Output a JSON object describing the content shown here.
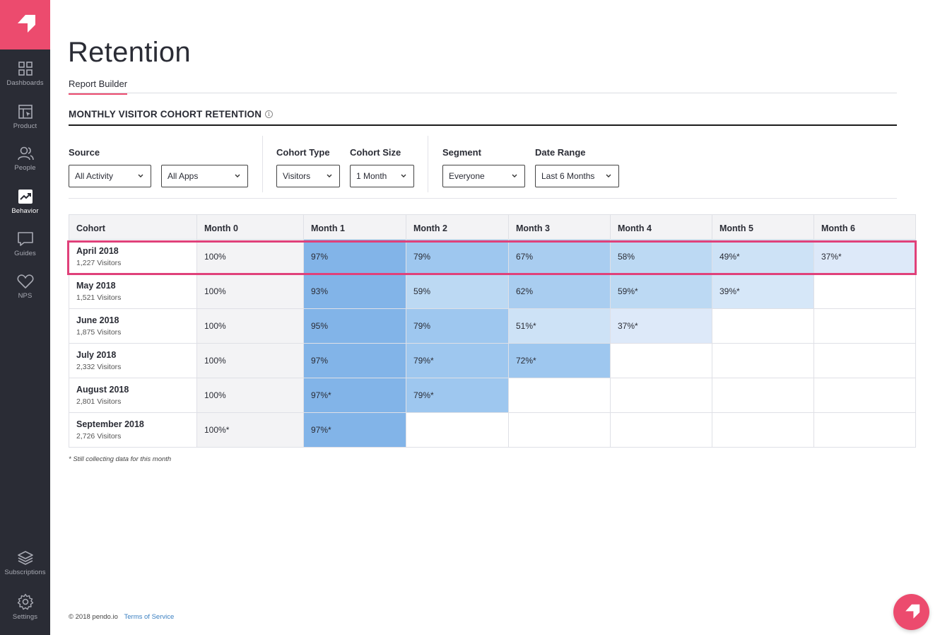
{
  "sidebar": {
    "items": [
      {
        "label": "Dashboards",
        "icon": "dashboards-icon"
      },
      {
        "label": "Product",
        "icon": "product-icon"
      },
      {
        "label": "People",
        "icon": "people-icon"
      },
      {
        "label": "Behavior",
        "icon": "behavior-icon",
        "active": true
      },
      {
        "label": "Guides",
        "icon": "guides-icon"
      },
      {
        "label": "NPS",
        "icon": "heart-icon"
      }
    ],
    "bottom_items": [
      {
        "label": "Subscriptions",
        "icon": "layers-icon"
      },
      {
        "label": "Settings",
        "icon": "gear-icon"
      }
    ]
  },
  "page": {
    "title": "Retention",
    "tab": "Report Builder",
    "section_title": "MONTHLY VISITOR COHORT RETENTION"
  },
  "filters": {
    "source_label": "Source",
    "source_value": "All Activity",
    "apps_value": "All Apps",
    "cohort_type_label": "Cohort Type",
    "cohort_type_value": "Visitors",
    "cohort_size_label": "Cohort Size",
    "cohort_size_value": "1 Month",
    "segment_label": "Segment",
    "segment_value": "Everyone",
    "date_range_label": "Date Range",
    "date_range_value": "Last 6 Months"
  },
  "table": {
    "headers": [
      "Cohort",
      "Month 0",
      "Month 1",
      "Month 2",
      "Month 3",
      "Month 4",
      "Month 5",
      "Month 6"
    ],
    "rows": [
      {
        "cohort": "April 2018",
        "visitors": "1,227 Visitors",
        "cells": [
          "100%",
          "97%",
          "79%",
          "67%",
          "58%",
          "49%*",
          "37%*"
        ]
      },
      {
        "cohort": "May 2018",
        "visitors": "1,521 Visitors",
        "cells": [
          "100%",
          "93%",
          "59%",
          "62%",
          "59%*",
          "39%*",
          ""
        ]
      },
      {
        "cohort": "June 2018",
        "visitors": "1,875 Visitors",
        "cells": [
          "100%",
          "95%",
          "79%",
          "51%*",
          "37%*",
          "",
          ""
        ]
      },
      {
        "cohort": "July 2018",
        "visitors": "2,332 Visitors",
        "cells": [
          "100%",
          "97%",
          "79%*",
          "72%*",
          "",
          "",
          ""
        ]
      },
      {
        "cohort": "August 2018",
        "visitors": "2,801 Visitors",
        "cells": [
          "100%",
          "97%*",
          "79%*",
          "",
          "",
          "",
          ""
        ]
      },
      {
        "cohort": "September 2018",
        "visitors": "2,726 Visitors",
        "cells": [
          "100%*",
          "97%*",
          "",
          "",
          "",
          "",
          ""
        ]
      }
    ],
    "footnote": "* Still collecting data for this month"
  },
  "footer": {
    "copyright": "© 2018 pendo.io",
    "terms": "Terms of Service"
  },
  "colors": {
    "brand": "#ec4b6e",
    "sidebar": "#2a2c35",
    "highlight": "#e0417a",
    "link": "#3a7fc1"
  }
}
